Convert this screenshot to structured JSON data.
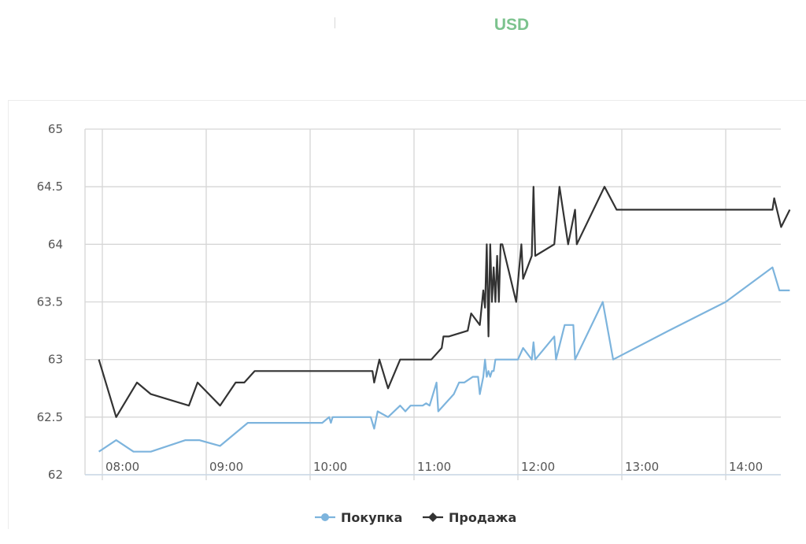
{
  "header": {
    "currency": "USD",
    "accent_color": "#7cc38e"
  },
  "chart_data": {
    "type": "line",
    "title": "",
    "xlabel": "",
    "ylabel": "",
    "ylim": [
      62,
      65
    ],
    "y_ticks": [
      "62",
      "62.5",
      "63",
      "63.5",
      "64",
      "64.5",
      "65"
    ],
    "x_ticks": [
      "08:00",
      "09:00",
      "10:00",
      "11:00",
      "12:00",
      "13:00",
      "14:00"
    ],
    "grid": true,
    "legend_position": "bottom-center",
    "series": [
      {
        "name": "Покупка",
        "color": "#7db4dd",
        "marker": "circle",
        "points": [
          [
            "07:58",
            62.2
          ],
          [
            "08:08",
            62.3
          ],
          [
            "08:18",
            62.2
          ],
          [
            "08:28",
            62.2
          ],
          [
            "08:48",
            62.3
          ],
          [
            "08:56",
            62.3
          ],
          [
            "09:08",
            62.25
          ],
          [
            "09:24",
            62.45
          ],
          [
            "09:42",
            62.45
          ],
          [
            "10:00",
            62.45
          ],
          [
            "10:07",
            62.45
          ],
          [
            "10:11",
            62.5
          ],
          [
            "10:12",
            62.45
          ],
          [
            "10:13",
            62.5
          ],
          [
            "10:31",
            62.5
          ],
          [
            "10:35",
            62.5
          ],
          [
            "10:37",
            62.4
          ],
          [
            "10:39",
            62.55
          ],
          [
            "10:45",
            62.5
          ],
          [
            "10:52",
            62.6
          ],
          [
            "10:55",
            62.55
          ],
          [
            "10:58",
            62.6
          ],
          [
            "11:05",
            62.6
          ],
          [
            "11:07",
            62.62
          ],
          [
            "11:09",
            62.6
          ],
          [
            "11:13",
            62.8
          ],
          [
            "11:14",
            62.55
          ],
          [
            "11:23",
            62.7
          ],
          [
            "11:26",
            62.8
          ],
          [
            "11:29",
            62.8
          ],
          [
            "11:34",
            62.85
          ],
          [
            "11:37",
            62.85
          ],
          [
            "11:38",
            62.7
          ],
          [
            "11:40",
            62.85
          ],
          [
            "11:41",
            63.0
          ],
          [
            "11:42",
            62.85
          ],
          [
            "11:43",
            62.9
          ],
          [
            "11:44",
            62.85
          ],
          [
            "11:45",
            62.9
          ],
          [
            "11:46",
            62.9
          ],
          [
            "11:47",
            63.0
          ],
          [
            "11:49",
            63.0
          ],
          [
            "12:00",
            63.0
          ],
          [
            "12:03",
            63.1
          ],
          [
            "12:08",
            63.0
          ],
          [
            "12:09",
            63.15
          ],
          [
            "12:10",
            63.0
          ],
          [
            "12:21",
            63.2
          ],
          [
            "12:22",
            63.0
          ],
          [
            "12:27",
            63.3
          ],
          [
            "12:32",
            63.3
          ],
          [
            "12:33",
            63.0
          ],
          [
            "12:49",
            63.5
          ],
          [
            "12:55",
            63.0
          ],
          [
            "13:27",
            63.25
          ],
          [
            "14:00",
            63.5
          ],
          [
            "14:27",
            63.8
          ],
          [
            "14:31",
            63.6
          ],
          [
            "14:37",
            63.6
          ]
        ]
      },
      {
        "name": "Продажа",
        "color": "#333333",
        "marker": "diamond",
        "points": [
          [
            "07:58",
            63.0
          ],
          [
            "08:08",
            62.5
          ],
          [
            "08:20",
            62.8
          ],
          [
            "08:28",
            62.7
          ],
          [
            "08:50",
            62.6
          ],
          [
            "08:55",
            62.8
          ],
          [
            "09:08",
            62.6
          ],
          [
            "09:17",
            62.8
          ],
          [
            "09:22",
            62.8
          ],
          [
            "09:28",
            62.9
          ],
          [
            "09:42",
            62.9
          ],
          [
            "10:00",
            62.9
          ],
          [
            "10:20",
            62.9
          ],
          [
            "10:36",
            62.9
          ],
          [
            "10:37",
            62.8
          ],
          [
            "10:40",
            63.0
          ],
          [
            "10:45",
            62.75
          ],
          [
            "10:52",
            63.0
          ],
          [
            "10:58",
            63.0
          ],
          [
            "11:10",
            63.0
          ],
          [
            "11:16",
            63.1
          ],
          [
            "11:17",
            63.2
          ],
          [
            "11:20",
            63.2
          ],
          [
            "11:31",
            63.25
          ],
          [
            "11:33",
            63.4
          ],
          [
            "11:38",
            63.3
          ],
          [
            "11:40",
            63.6
          ],
          [
            "11:41",
            63.45
          ],
          [
            "11:42",
            64.0
          ],
          [
            "11:43",
            63.2
          ],
          [
            "11:44",
            64.0
          ],
          [
            "11:45",
            63.5
          ],
          [
            "11:46",
            63.8
          ],
          [
            "11:47",
            63.5
          ],
          [
            "11:48",
            63.9
          ],
          [
            "11:49",
            63.5
          ],
          [
            "11:50",
            64.0
          ],
          [
            "11:51",
            64.0
          ],
          [
            "11:59",
            63.5
          ],
          [
            "12:02",
            64.0
          ],
          [
            "12:03",
            63.7
          ],
          [
            "12:08",
            63.9
          ],
          [
            "12:09",
            64.5
          ],
          [
            "12:10",
            63.9
          ],
          [
            "12:21",
            64.0
          ],
          [
            "12:24",
            64.5
          ],
          [
            "12:29",
            64.0
          ],
          [
            "12:33",
            64.3
          ],
          [
            "12:34",
            64.0
          ],
          [
            "12:50",
            64.5
          ],
          [
            "12:57",
            64.3
          ],
          [
            "13:20",
            64.3
          ],
          [
            "14:27",
            64.3
          ],
          [
            "14:28",
            64.4
          ],
          [
            "14:32",
            64.15
          ],
          [
            "14:37",
            64.3
          ]
        ]
      }
    ]
  }
}
